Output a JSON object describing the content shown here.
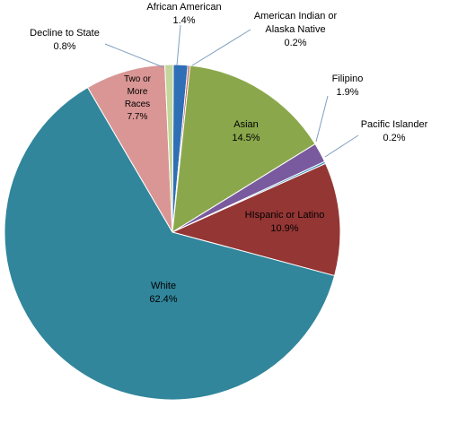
{
  "chart_data": {
    "type": "pie",
    "title": "",
    "slices": [
      {
        "label": [
          "African American"
        ],
        "value": "1.4%",
        "pct": 1.4,
        "color": "#2f6fb5"
      },
      {
        "label": [
          "American Indian or",
          "Alaska Native"
        ],
        "value": "0.2%",
        "pct": 0.2,
        "color": "#c0504d"
      },
      {
        "label": [
          "Asian"
        ],
        "value": "14.5%",
        "pct": 14.5,
        "color": "#8aa84b"
      },
      {
        "label": [
          "Filipino"
        ],
        "value": "1.9%",
        "pct": 1.9,
        "color": "#7a5a9e"
      },
      {
        "label": [
          "Pacific Islander"
        ],
        "value": "0.2%",
        "pct": 0.2,
        "color": "#3f8fc4"
      },
      {
        "label": [
          "HIspanic or Latino"
        ],
        "value": "10.9%",
        "pct": 10.9,
        "color": "#943634"
      },
      {
        "label": [
          "White"
        ],
        "value": "62.4%",
        "pct": 62.4,
        "color": "#31869b"
      },
      {
        "label": [
          "Two or",
          "More",
          "Races"
        ],
        "value": "7.7%",
        "pct": 7.7,
        "color": "#d99694"
      },
      {
        "label": [
          "Decline to State"
        ],
        "value": "0.8%",
        "pct": 0.8,
        "color": "#c3d69b"
      }
    ]
  }
}
